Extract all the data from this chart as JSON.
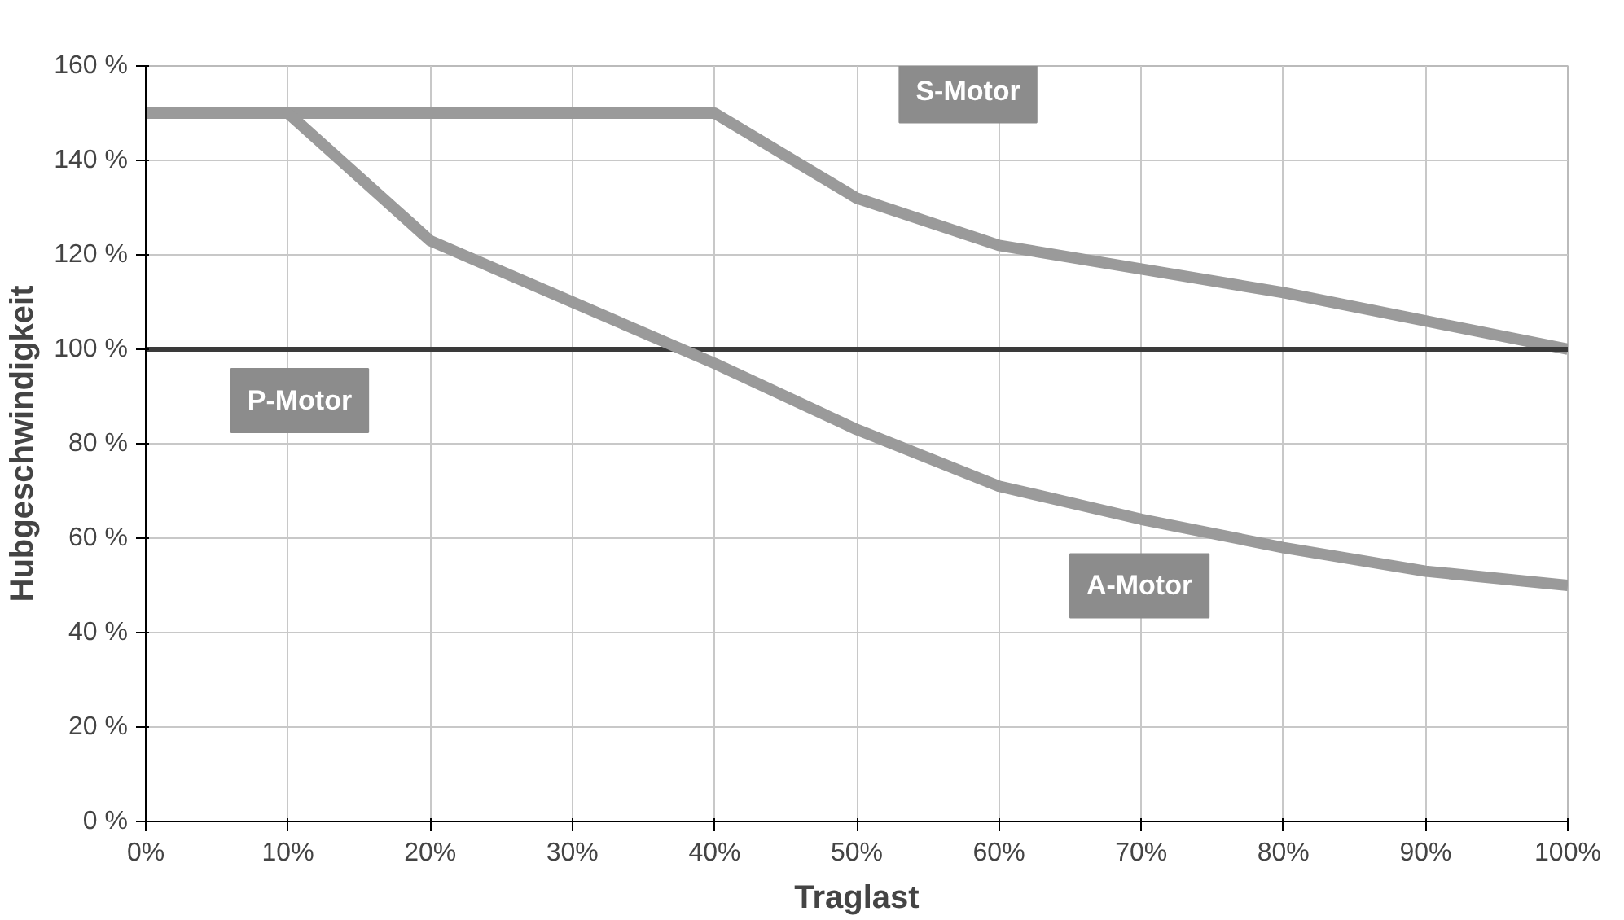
{
  "chart_data": {
    "type": "line",
    "xlabel": "Traglast",
    "ylabel": "Hubgeschwindigkeit",
    "x": [
      0,
      10,
      20,
      30,
      40,
      50,
      60,
      70,
      80,
      90,
      100
    ],
    "series": [
      {
        "name": "S-Motor",
        "color": "#9a9a9a",
        "values": [
          150,
          150,
          150,
          150,
          150,
          132,
          122,
          117,
          112,
          106,
          100
        ]
      },
      {
        "name": "P-Motor",
        "color": "#3a3a3a",
        "values": [
          100,
          100,
          100,
          100,
          100,
          100,
          100,
          100,
          100,
          100,
          100
        ]
      },
      {
        "name": "A-Motor",
        "color": "#9a9a9a",
        "values": [
          150,
          150,
          123,
          110,
          97,
          83,
          71,
          64,
          58,
          53,
          50
        ]
      }
    ],
    "xlim": [
      0,
      100
    ],
    "ylim": [
      0,
      160
    ],
    "xticks": [
      {
        "value": 0,
        "label": "0%"
      },
      {
        "value": 10,
        "label": "10%"
      },
      {
        "value": 20,
        "label": "20%"
      },
      {
        "value": 30,
        "label": "30%"
      },
      {
        "value": 40,
        "label": "40%"
      },
      {
        "value": 50,
        "label": "50%"
      },
      {
        "value": 60,
        "label": "60%"
      },
      {
        "value": 70,
        "label": "70%"
      },
      {
        "value": 80,
        "label": "80%"
      },
      {
        "value": 90,
        "label": "90%"
      },
      {
        "value": 100,
        "label": "100%"
      }
    ],
    "yticks": [
      {
        "value": 0,
        "label": "0 %"
      },
      {
        "value": 20,
        "label": "20 %"
      },
      {
        "value": 40,
        "label": "40 %"
      },
      {
        "value": 60,
        "label": "60 %"
      },
      {
        "value": 80,
        "label": "80 %"
      },
      {
        "value": 100,
        "label": "100 %"
      },
      {
        "value": 120,
        "label": "120 %"
      },
      {
        "value": 140,
        "label": "140 %"
      },
      {
        "value": 160,
        "label": "160 %"
      }
    ],
    "grid": true,
    "marker": "none",
    "line_style": "solid"
  }
}
